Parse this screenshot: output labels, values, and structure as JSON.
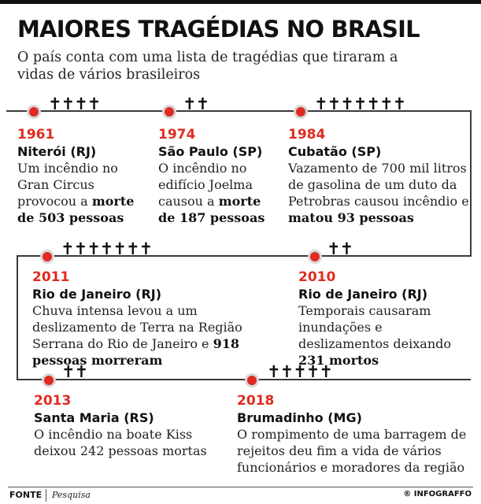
{
  "title": "MAIORES TRAGÉDIAS NO BRASIL",
  "subtitle": "O país conta com uma lista de tragédias que tiraram a vidas de vários brasileiros",
  "accent_color": "#e02b20",
  "cross_icon": "latin-cross-icon",
  "events": [
    {
      "year": "1961",
      "place": "Niterói (RJ)",
      "deaths": 503,
      "desc_pre": "Um incêndio no Gran Circus provocou a ",
      "desc_bold": "morte de 503 pessoas",
      "desc_post": "",
      "crosses": "✝✝✝✝"
    },
    {
      "year": "1974",
      "place": "São Paulo (SP)",
      "deaths": 187,
      "desc_pre": "O incêndio no edifício Joelma causou a ",
      "desc_bold": "morte de 187 pessoas",
      "desc_post": "",
      "crosses": "✝✝"
    },
    {
      "year": "1984",
      "place": "Cubatão (SP)",
      "deaths": 93,
      "desc_pre": "Vazamento de 700 mil litros de gasolina de um duto da Petrobras causou incêndio e ",
      "desc_bold": "matou 93 pessoas",
      "desc_post": "",
      "crosses": "✝✝✝✝✝✝✝"
    },
    {
      "year": "2011",
      "place": "Rio de Janeiro (RJ)",
      "deaths": 918,
      "desc_pre": "Chuva intensa levou a um deslizamento de Terra na Região Serrana do Rio de Janeiro e ",
      "desc_bold": "918 pessoas morreram",
      "desc_post": "",
      "crosses": "✝✝✝✝✝✝✝"
    },
    {
      "year": "2010",
      "place": "Rio de Janeiro (RJ)",
      "deaths": 231,
      "desc_pre": "Temporais causaram inundações e deslizamentos deixando ",
      "desc_bold": "231 mortos",
      "desc_post": "",
      "crosses": "✝✝"
    },
    {
      "year": "2013",
      "place": "Santa Maria (RS)",
      "deaths": 242,
      "desc_pre": "O incêndio na boate Kiss deixou 242 pessoas mortas",
      "desc_bold": "",
      "desc_post": "",
      "crosses": "✝✝"
    },
    {
      "year": "2018",
      "place": "Brumadinho (MG)",
      "deaths": null,
      "desc_pre": "O rompimento de uma barragem de rejeitos deu fim a vida de vários funcionários e moradores da região",
      "desc_bold": "",
      "desc_post": "",
      "crosses": "✝✝✝✝✝"
    }
  ],
  "footer": {
    "fonte_label": "FONTE",
    "fonte_value": "Pesquisa",
    "brand": "® INFOGRAFFO"
  }
}
